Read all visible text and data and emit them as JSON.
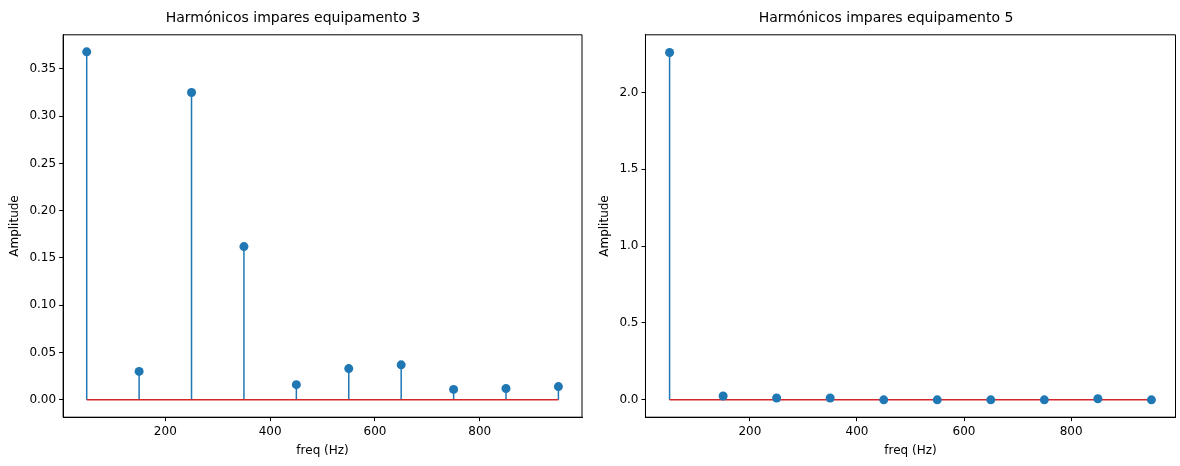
{
  "chart_data": [
    {
      "type": "lollipop",
      "title": "Harmónicos impares equipamento 3",
      "xlabel": "freq (Hz)",
      "ylabel": "Amplitude",
      "x": [
        50,
        150,
        250,
        350,
        450,
        550,
        650,
        750,
        850,
        950
      ],
      "series": [
        {
          "color": "#1f77b4",
          "values": [
            0.368,
            0.03,
            0.325,
            0.162,
            0.016,
            0.033,
            0.037,
            0.011,
            0.012,
            0.014
          ]
        }
      ],
      "xlim": [
        5,
        995
      ],
      "xticks": [
        200,
        400,
        600,
        800
      ],
      "ylim": [
        -0.0184,
        0.386
      ],
      "yticks": [
        {
          "value": 0,
          "label": "0.00"
        },
        {
          "value": 0.05,
          "label": "0.05"
        },
        {
          "value": 0.1,
          "label": "0.10"
        },
        {
          "value": 0.15,
          "label": "0.15"
        },
        {
          "value": 0.2,
          "label": "0.20"
        },
        {
          "value": 0.25,
          "label": "0.25"
        },
        {
          "value": 0.3,
          "label": "0.30"
        },
        {
          "value": 0.35,
          "label": "0.35"
        }
      ],
      "ref_lines": [
        {
          "axis": "y",
          "value": 0,
          "color": "#d62728"
        }
      ],
      "grid": false,
      "legend": false,
      "marker": "circle"
    },
    {
      "type": "lollipop",
      "title": "Harmónicos impares equipamento 5",
      "xlabel": "freq (Hz)",
      "ylabel": "Amplitude",
      "x": [
        50,
        150,
        250,
        350,
        450,
        550,
        650,
        750,
        850,
        950
      ],
      "series": [
        {
          "color": "#1f77b4",
          "values": [
            2.26,
            0.025,
            0.012,
            0.012,
            0,
            0,
            0,
            0,
            0.007,
            0
          ]
        }
      ],
      "xlim": [
        5,
        995
      ],
      "xticks": [
        200,
        400,
        600,
        800
      ],
      "ylim": [
        -0.113,
        2.375
      ],
      "yticks": [
        {
          "value": 0,
          "label": "0.0"
        },
        {
          "value": 0.5,
          "label": "0.5"
        },
        {
          "value": 1,
          "label": "1.0"
        },
        {
          "value": 1.5,
          "label": "1.5"
        },
        {
          "value": 2,
          "label": "2.0"
        }
      ],
      "ref_lines": [
        {
          "axis": "y",
          "value": 0,
          "color": "#d62728"
        }
      ],
      "grid": false,
      "legend": false,
      "marker": "circle"
    }
  ]
}
